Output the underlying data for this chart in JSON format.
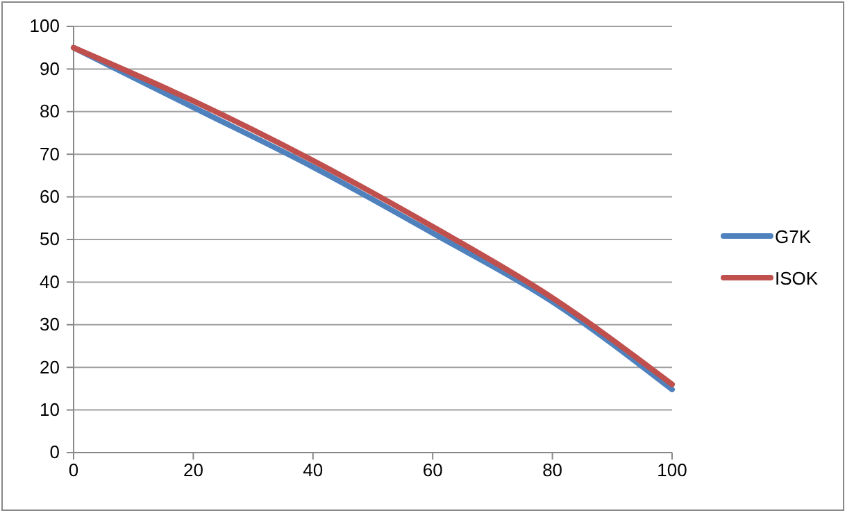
{
  "chart_data": {
    "type": "line",
    "x": [
      0,
      20,
      40,
      60,
      80,
      100
    ],
    "series": [
      {
        "name": "G7K",
        "color": "#4f81bd",
        "values": [
          95,
          81,
          67,
          51.5,
          35.4,
          14.8
        ]
      },
      {
        "name": "ISOK",
        "color": "#c0504d",
        "values": [
          95,
          82.5,
          68.5,
          53,
          36.3,
          16
        ]
      }
    ],
    "xlim": [
      0,
      100
    ],
    "xticks": [
      0,
      20,
      40,
      60,
      80,
      100
    ],
    "ylim": [
      0,
      100
    ],
    "yticks": [
      0,
      10,
      20,
      30,
      40,
      50,
      60,
      70,
      80,
      90,
      100
    ],
    "grid": "y",
    "legend": "right",
    "marker": "none",
    "line_style": "solid"
  }
}
